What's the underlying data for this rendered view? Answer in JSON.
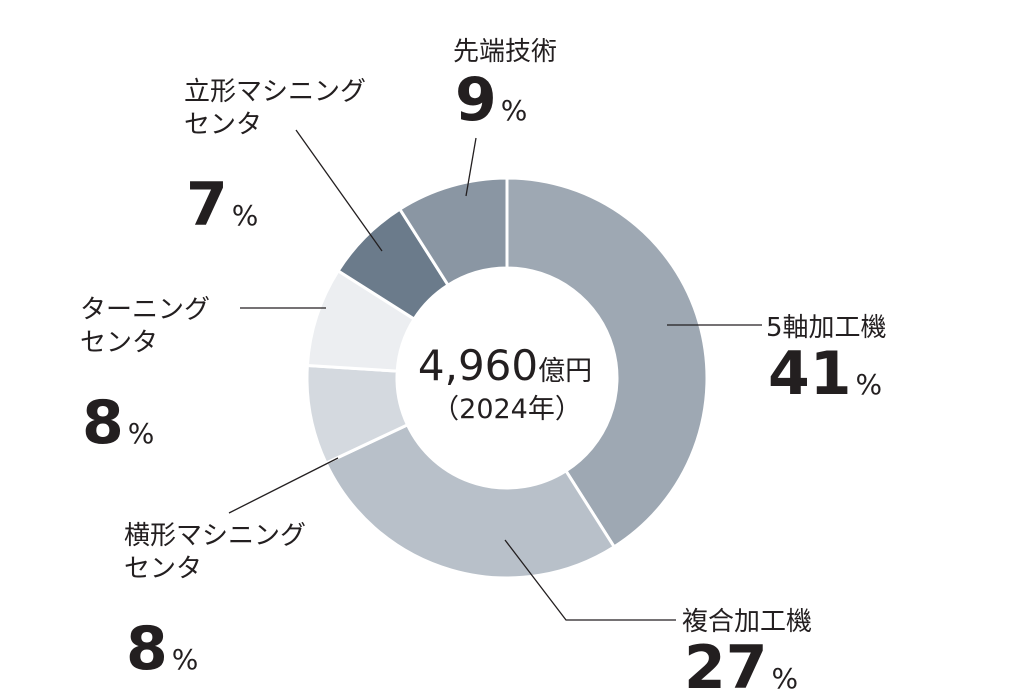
{
  "chart_data": {
    "type": "pie",
    "categories": [
      "5軸加工機",
      "複合加工機",
      "横形マシニングセンタ",
      "ターニングセンタ",
      "立形マシニングセンタ",
      "先端技術"
    ],
    "values": [
      41,
      27,
      8,
      8,
      7,
      9
    ],
    "unit": "%",
    "center_label": {
      "total": "4,960",
      "unit": "億円",
      "sub": "（2024年）"
    },
    "colors": [
      "#9ea8b3",
      "#b8c0c9",
      "#d4d9df",
      "#eceef1",
      "#6b7b8b",
      "#8a96a3"
    ]
  },
  "labels": [
    {
      "lines": [
        "5軸加工機"
      ],
      "value": "41",
      "unit": "%"
    },
    {
      "lines": [
        "複合加工機"
      ],
      "value": "27",
      "unit": "%"
    },
    {
      "lines": [
        "横形マシニング",
        "センタ"
      ],
      "value": "8",
      "unit": "%"
    },
    {
      "lines": [
        "ターニング",
        "センタ"
      ],
      "value": "8",
      "unit": "%"
    },
    {
      "lines": [
        "立形マシニング",
        "センタ"
      ],
      "value": "7",
      "unit": "%"
    },
    {
      "lines": [
        "先端技術"
      ],
      "value": "9",
      "unit": "%"
    }
  ]
}
